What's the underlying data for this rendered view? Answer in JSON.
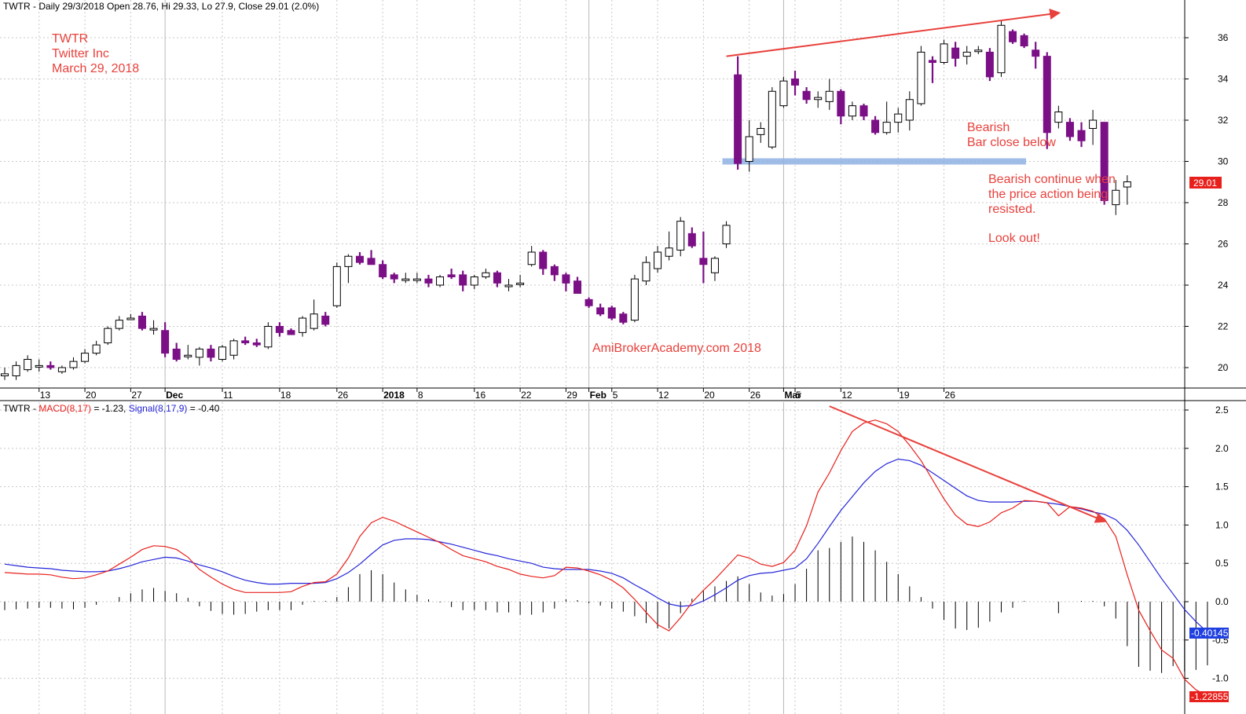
{
  "header": {
    "price": "TWTR - Daily 29/3/2018 Open 28.76, Hi 29.33, Lo 27.9, Close 29.01 (2.0%)",
    "macd_prefix": "TWTR - ",
    "macd_label": "MACD(8,17)",
    "macd_value": " = -1.23, ",
    "signal_label": "Signal(8,17,9)",
    "signal_value": " = -0.40"
  },
  "annotations": {
    "title_line1": "TWTR",
    "title_line2": "Twitter Inc",
    "title_line3": "March 29, 2018",
    "bearish_line1": "Bearish",
    "bearish_line2": "Bar close below",
    "continue_line1": "Bearish continue when",
    "continue_line2": "the price action being",
    "continue_line3": "resisted.",
    "lookout": "Look out!",
    "watermark": "AmiBrokerAcademy.com  2018"
  },
  "badges": {
    "close_price": "29.01",
    "signal_value": "-0.40145",
    "macd_value": "-1.22855"
  },
  "colors": {
    "bear_candle": "#7b0f86",
    "macd_line": "#e8201c",
    "signal_line": "#2626d9",
    "annotation": "#e8413c",
    "support_zone": "#8fb1e3",
    "close_badge": "#e8201c",
    "signal_badge": "#1f3fe0"
  },
  "chart_data": [
    {
      "type": "candlestick",
      "ylim": [
        19,
        37.5
      ],
      "y_ticks": [
        20,
        22,
        24,
        26,
        28,
        30,
        32,
        34,
        36
      ],
      "x_tick_labels": [
        "13",
        "20",
        "27",
        "Dec",
        "11",
        "18",
        "26",
        "2018",
        "8",
        "16",
        "22",
        "29",
        "Feb",
        "5",
        "12",
        "20",
        "26",
        "Mar",
        "5",
        "12",
        "19",
        "26"
      ],
      "candles": [
        {
          "o": 19.6,
          "h": 20.0,
          "l": 19.4,
          "c": 19.7
        },
        {
          "o": 19.6,
          "h": 20.3,
          "l": 19.4,
          "c": 20.1
        },
        {
          "o": 19.9,
          "h": 20.6,
          "l": 19.8,
          "c": 20.4
        },
        {
          "o": 20.1,
          "h": 20.4,
          "l": 19.8,
          "c": 20.1
        },
        {
          "o": 20.1,
          "h": 20.3,
          "l": 19.9,
          "c": 20.0
        },
        {
          "o": 19.8,
          "h": 20.1,
          "l": 19.7,
          "c": 20.0
        },
        {
          "o": 20.0,
          "h": 20.5,
          "l": 19.9,
          "c": 20.3
        },
        {
          "o": 20.3,
          "h": 20.9,
          "l": 20.2,
          "c": 20.7
        },
        {
          "o": 20.7,
          "h": 21.3,
          "l": 20.6,
          "c": 21.1
        },
        {
          "o": 21.2,
          "h": 22.0,
          "l": 21.1,
          "c": 21.9
        },
        {
          "o": 21.9,
          "h": 22.5,
          "l": 21.8,
          "c": 22.3
        },
        {
          "o": 22.4,
          "h": 22.6,
          "l": 22.3,
          "c": 22.4
        },
        {
          "o": 22.5,
          "h": 22.7,
          "l": 21.8,
          "c": 21.9
        },
        {
          "o": 21.9,
          "h": 22.3,
          "l": 21.6,
          "c": 21.9
        },
        {
          "o": 21.8,
          "h": 22.2,
          "l": 20.5,
          "c": 20.7
        },
        {
          "o": 20.9,
          "h": 21.2,
          "l": 20.3,
          "c": 20.4
        },
        {
          "o": 20.6,
          "h": 21.1,
          "l": 20.4,
          "c": 20.6
        },
        {
          "o": 20.5,
          "h": 21.0,
          "l": 20.1,
          "c": 20.9
        },
        {
          "o": 20.9,
          "h": 21.1,
          "l": 20.3,
          "c": 20.5
        },
        {
          "o": 20.4,
          "h": 21.1,
          "l": 20.3,
          "c": 21.0
        },
        {
          "o": 20.6,
          "h": 21.4,
          "l": 20.4,
          "c": 21.3
        },
        {
          "o": 21.3,
          "h": 21.5,
          "l": 21.1,
          "c": 21.2
        },
        {
          "o": 21.2,
          "h": 21.4,
          "l": 21.0,
          "c": 21.1
        },
        {
          "o": 21.0,
          "h": 22.2,
          "l": 20.9,
          "c": 22.0
        },
        {
          "o": 22.0,
          "h": 22.2,
          "l": 21.5,
          "c": 21.7
        },
        {
          "o": 21.8,
          "h": 21.9,
          "l": 21.6,
          "c": 21.6
        },
        {
          "o": 21.7,
          "h": 22.5,
          "l": 21.5,
          "c": 22.4
        },
        {
          "o": 21.9,
          "h": 23.3,
          "l": 21.8,
          "c": 22.6
        },
        {
          "o": 22.5,
          "h": 22.7,
          "l": 22.0,
          "c": 22.1
        },
        {
          "o": 23.0,
          "h": 25.1,
          "l": 22.9,
          "c": 24.9
        },
        {
          "o": 24.9,
          "h": 25.5,
          "l": 24.1,
          "c": 25.4
        },
        {
          "o": 25.4,
          "h": 25.6,
          "l": 25.0,
          "c": 25.1
        },
        {
          "o": 25.3,
          "h": 25.7,
          "l": 25.0,
          "c": 25.0
        },
        {
          "o": 25.0,
          "h": 25.2,
          "l": 24.3,
          "c": 24.4
        },
        {
          "o": 24.5,
          "h": 24.6,
          "l": 24.1,
          "c": 24.3
        },
        {
          "o": 24.3,
          "h": 24.6,
          "l": 24.1,
          "c": 24.3
        },
        {
          "o": 24.3,
          "h": 24.6,
          "l": 24.1,
          "c": 24.3
        },
        {
          "o": 24.3,
          "h": 24.5,
          "l": 23.9,
          "c": 24.1
        },
        {
          "o": 24.0,
          "h": 24.5,
          "l": 23.9,
          "c": 24.4
        },
        {
          "o": 24.5,
          "h": 24.8,
          "l": 24.3,
          "c": 24.4
        },
        {
          "o": 24.5,
          "h": 24.7,
          "l": 23.7,
          "c": 24.0
        },
        {
          "o": 24.0,
          "h": 24.5,
          "l": 23.8,
          "c": 24.4
        },
        {
          "o": 24.4,
          "h": 24.8,
          "l": 24.3,
          "c": 24.6
        },
        {
          "o": 24.6,
          "h": 24.7,
          "l": 23.9,
          "c": 24.1
        },
        {
          "o": 24.0,
          "h": 24.3,
          "l": 23.7,
          "c": 24.0
        },
        {
          "o": 24.1,
          "h": 24.5,
          "l": 23.9,
          "c": 24.1
        },
        {
          "o": 25.0,
          "h": 25.9,
          "l": 24.9,
          "c": 25.6
        },
        {
          "o": 25.6,
          "h": 25.7,
          "l": 24.5,
          "c": 24.8
        },
        {
          "o": 24.9,
          "h": 25.0,
          "l": 24.2,
          "c": 24.5
        },
        {
          "o": 24.5,
          "h": 24.6,
          "l": 23.7,
          "c": 24.1
        },
        {
          "o": 24.2,
          "h": 24.4,
          "l": 23.6,
          "c": 23.6
        },
        {
          "o": 23.3,
          "h": 23.4,
          "l": 22.9,
          "c": 23.0
        },
        {
          "o": 22.9,
          "h": 23.1,
          "l": 22.5,
          "c": 22.6
        },
        {
          "o": 22.9,
          "h": 23.0,
          "l": 22.3,
          "c": 22.4
        },
        {
          "o": 22.6,
          "h": 22.7,
          "l": 22.1,
          "c": 22.2
        },
        {
          "o": 22.3,
          "h": 24.5,
          "l": 22.2,
          "c": 24.3
        },
        {
          "o": 24.2,
          "h": 25.4,
          "l": 24.0,
          "c": 25.1
        },
        {
          "o": 24.8,
          "h": 25.9,
          "l": 24.6,
          "c": 25.6
        },
        {
          "o": 25.4,
          "h": 26.6,
          "l": 25.2,
          "c": 25.8
        },
        {
          "o": 25.7,
          "h": 27.3,
          "l": 25.4,
          "c": 27.1
        },
        {
          "o": 26.5,
          "h": 26.8,
          "l": 25.8,
          "c": 25.9
        },
        {
          "o": 25.3,
          "h": 26.6,
          "l": 24.1,
          "c": 25.0
        },
        {
          "o": 24.6,
          "h": 25.4,
          "l": 24.2,
          "c": 25.3
        },
        {
          "o": 26.0,
          "h": 27.1,
          "l": 25.8,
          "c": 26.9
        },
        {
          "o": 34.2,
          "h": 35.1,
          "l": 29.6,
          "c": 29.9
        },
        {
          "o": 30.0,
          "h": 32.0,
          "l": 29.5,
          "c": 31.2
        },
        {
          "o": 31.3,
          "h": 31.9,
          "l": 30.9,
          "c": 31.6
        },
        {
          "o": 30.7,
          "h": 33.6,
          "l": 30.6,
          "c": 33.4
        },
        {
          "o": 32.7,
          "h": 34.1,
          "l": 32.6,
          "c": 33.9
        },
        {
          "o": 34.0,
          "h": 34.4,
          "l": 33.2,
          "c": 33.7
        },
        {
          "o": 33.4,
          "h": 33.6,
          "l": 32.8,
          "c": 33.0
        },
        {
          "o": 33.0,
          "h": 33.4,
          "l": 32.6,
          "c": 33.1
        },
        {
          "o": 32.9,
          "h": 34.0,
          "l": 32.5,
          "c": 33.4
        },
        {
          "o": 33.4,
          "h": 33.5,
          "l": 31.8,
          "c": 32.2
        },
        {
          "o": 32.2,
          "h": 32.9,
          "l": 32.0,
          "c": 32.7
        },
        {
          "o": 32.7,
          "h": 32.8,
          "l": 32.0,
          "c": 32.2
        },
        {
          "o": 32.0,
          "h": 32.2,
          "l": 31.3,
          "c": 31.4
        },
        {
          "o": 31.4,
          "h": 32.9,
          "l": 31.3,
          "c": 31.9
        },
        {
          "o": 31.9,
          "h": 32.6,
          "l": 31.4,
          "c": 32.3
        },
        {
          "o": 32.0,
          "h": 33.4,
          "l": 31.5,
          "c": 33.0
        },
        {
          "o": 32.8,
          "h": 35.6,
          "l": 32.7,
          "c": 35.3
        },
        {
          "o": 34.9,
          "h": 35.1,
          "l": 33.8,
          "c": 34.8
        },
        {
          "o": 34.8,
          "h": 35.9,
          "l": 34.7,
          "c": 35.7
        },
        {
          "o": 35.5,
          "h": 35.8,
          "l": 34.6,
          "c": 35.0
        },
        {
          "o": 35.1,
          "h": 35.6,
          "l": 34.7,
          "c": 35.3
        },
        {
          "o": 35.4,
          "h": 35.6,
          "l": 35.2,
          "c": 35.4
        },
        {
          "o": 35.3,
          "h": 35.5,
          "l": 33.9,
          "c": 34.1
        },
        {
          "o": 34.3,
          "h": 36.8,
          "l": 34.1,
          "c": 36.6
        },
        {
          "o": 36.3,
          "h": 36.4,
          "l": 35.7,
          "c": 35.8
        },
        {
          "o": 36.1,
          "h": 36.2,
          "l": 35.5,
          "c": 35.6
        },
        {
          "o": 35.4,
          "h": 35.8,
          "l": 34.5,
          "c": 35.1
        },
        {
          "o": 35.1,
          "h": 35.3,
          "l": 30.6,
          "c": 31.4
        },
        {
          "o": 31.9,
          "h": 32.7,
          "l": 31.6,
          "c": 32.4
        },
        {
          "o": 31.9,
          "h": 32.1,
          "l": 31.0,
          "c": 31.2
        },
        {
          "o": 31.5,
          "h": 31.9,
          "l": 30.7,
          "c": 31.0
        },
        {
          "o": 31.6,
          "h": 32.5,
          "l": 30.8,
          "c": 32.0
        },
        {
          "o": 31.9,
          "h": 31.9,
          "l": 27.9,
          "c": 28.1
        },
        {
          "o": 27.9,
          "h": 29.1,
          "l": 27.4,
          "c": 28.6
        },
        {
          "o": 28.76,
          "h": 29.33,
          "l": 27.9,
          "c": 29.01
        }
      ],
      "support_level": 30.0,
      "trendline": {
        "from": [
          63,
          35.1
        ],
        "to": [
          92,
          37.2
        ]
      }
    },
    {
      "type": "line",
      "ylim": [
        -1.3,
        2.6
      ],
      "y_ticks": [
        -1.0,
        -0.5,
        0.0,
        0.5,
        1.0,
        1.5,
        2.0,
        2.5
      ],
      "series": [
        {
          "name": "MACD(8,17)",
          "values": [
            0.38,
            0.37,
            0.36,
            0.36,
            0.35,
            0.32,
            0.3,
            0.31,
            0.35,
            0.4,
            0.49,
            0.58,
            0.68,
            0.73,
            0.72,
            0.68,
            0.58,
            0.42,
            0.32,
            0.23,
            0.16,
            0.12,
            0.12,
            0.12,
            0.12,
            0.13,
            0.2,
            0.25,
            0.26,
            0.36,
            0.57,
            0.85,
            1.03,
            1.1,
            1.05,
            0.98,
            0.91,
            0.84,
            0.77,
            0.68,
            0.6,
            0.56,
            0.52,
            0.46,
            0.42,
            0.36,
            0.33,
            0.31,
            0.34,
            0.45,
            0.44,
            0.4,
            0.35,
            0.28,
            0.18,
            0.03,
            -0.14,
            -0.3,
            -0.38,
            -0.21,
            -0.01,
            0.15,
            0.29,
            0.45,
            0.61,
            0.57,
            0.49,
            0.46,
            0.51,
            0.67,
            0.99,
            1.43,
            1.68,
            1.97,
            2.22,
            2.33,
            2.37,
            2.32,
            2.22,
            2.04,
            1.84,
            1.59,
            1.34,
            1.13,
            1.01,
            0.98,
            1.04,
            1.16,
            1.22,
            1.32,
            1.31,
            1.29,
            1.12,
            1.24,
            1.22,
            1.18,
            1.08,
            0.85,
            0.35,
            -0.11,
            -0.38,
            -0.63,
            -0.74,
            -1.01,
            -1.15,
            -1.23
          ]
        },
        {
          "name": "Signal(8,17,9)",
          "values": [
            0.49,
            0.47,
            0.45,
            0.44,
            0.43,
            0.41,
            0.4,
            0.39,
            0.39,
            0.4,
            0.43,
            0.47,
            0.52,
            0.55,
            0.58,
            0.57,
            0.53,
            0.48,
            0.44,
            0.39,
            0.33,
            0.28,
            0.25,
            0.23,
            0.23,
            0.24,
            0.24,
            0.24,
            0.25,
            0.3,
            0.38,
            0.49,
            0.62,
            0.74,
            0.8,
            0.82,
            0.82,
            0.81,
            0.78,
            0.75,
            0.71,
            0.67,
            0.63,
            0.6,
            0.56,
            0.53,
            0.5,
            0.45,
            0.43,
            0.42,
            0.42,
            0.42,
            0.4,
            0.37,
            0.31,
            0.22,
            0.14,
            0.05,
            -0.03,
            -0.06,
            -0.05,
            0.01,
            0.09,
            0.18,
            0.28,
            0.34,
            0.37,
            0.38,
            0.41,
            0.44,
            0.56,
            0.76,
            0.98,
            1.19,
            1.37,
            1.55,
            1.7,
            1.8,
            1.86,
            1.84,
            1.78,
            1.68,
            1.58,
            1.48,
            1.38,
            1.32,
            1.3,
            1.3,
            1.3,
            1.31,
            1.31,
            1.29,
            1.27,
            1.24,
            1.21,
            1.17,
            1.14,
            1.07,
            0.93,
            0.74,
            0.52,
            0.3,
            0.1,
            -0.1,
            -0.26,
            -0.4
          ]
        }
      ],
      "trendline": {
        "from": [
          72,
          2.55
        ],
        "to": [
          96,
          1.05
        ]
      }
    }
  ]
}
